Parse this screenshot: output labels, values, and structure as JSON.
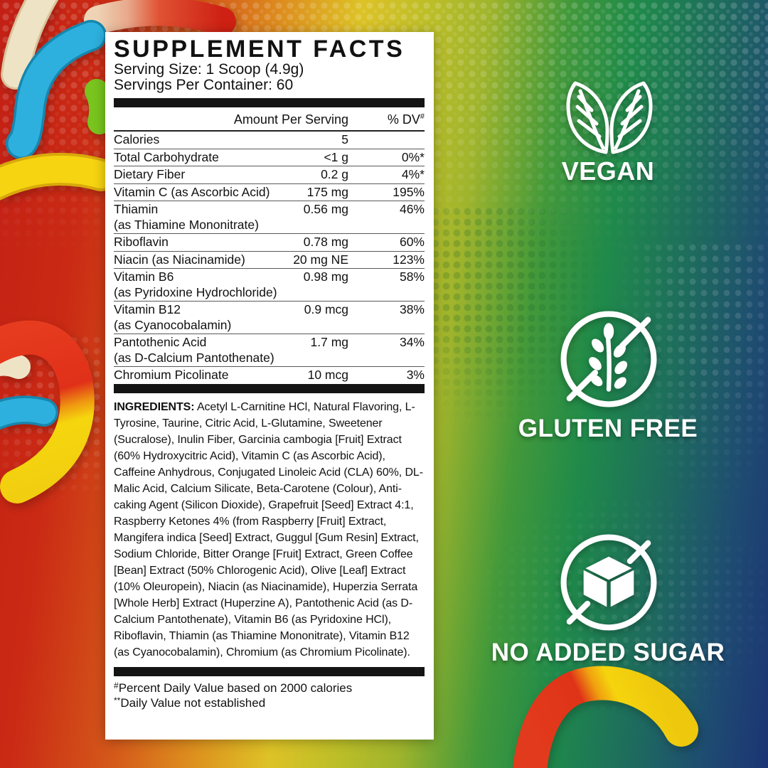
{
  "panel": {
    "title": "SUPPLEMENT FACTS",
    "serving_size": "Serving Size: 1 Scoop (4.9g)",
    "servings_per_container": "Servings Per Container: 60",
    "columns": {
      "amount": "Amount Per Serving",
      "dv": "% DV",
      "dv_sup": "#"
    },
    "rows": [
      {
        "name": "Calories",
        "amount": "5",
        "dv": ""
      },
      {
        "name": "Total Carbohydrate",
        "amount": "<1 g",
        "dv": "0%*"
      },
      {
        "name": "Dietary Fiber",
        "amount": "0.2 g",
        "dv": "4%*"
      },
      {
        "name": "Vitamin C (as Ascorbic Acid)",
        "amount": "175 mg",
        "dv": "195%"
      },
      {
        "name": "Thiamin",
        "sub": "(as Thiamine Mononitrate)",
        "amount": "0.56 mg",
        "dv": "46%"
      },
      {
        "name": "Riboflavin",
        "amount": "0.78 mg",
        "dv": "60%"
      },
      {
        "name": "Niacin (as Niacinamide)",
        "amount": "20 mg NE",
        "dv": "123%"
      },
      {
        "name": "Vitamin B6",
        "sub": "(as Pyridoxine Hydrochloride)",
        "amount": "0.98 mg",
        "dv": "58%"
      },
      {
        "name": "Vitamin B12",
        "sub": "(as Cyanocobalamin)",
        "amount": "0.9 mcg",
        "dv": "38%"
      },
      {
        "name": "Pantothenic Acid",
        "sub": "(as D-Calcium Pantothenate)",
        "amount": "1.7 mg",
        "dv": "34%"
      },
      {
        "name": "Chromium Picolinate",
        "amount": "10 mcg",
        "dv": "3%"
      }
    ],
    "ingredients_label": "INGREDIENTS:",
    "ingredients": " Acetyl L-Carnitine HCl, Natural Flavoring, L-Tyrosine, Taurine, Citric Acid, L-Glutamine, Sweetener (Sucralose), Inulin Fiber, Garcinia cambogia [Fruit] Extract (60% Hydroxycitric Acid), Vitamin C (as Ascorbic Acid), Caffeine Anhydrous, Conjugated Linoleic Acid (CLA) 60%, DL-Malic Acid, Calcium Silicate, Beta-Carotene (Colour), Anti-caking Agent (Silicon Dioxide), Grapefruit [Seed] Extract 4:1, Raspberry Ketones 4% (from Raspberry [Fruit] Extract, Mangifera indica [Seed] Extract, Guggul [Gum Resin] Extract, Sodium Chloride, Bitter Orange [Fruit] Extract, Green Coffee [Bean] Extract (50% Chlorogenic Acid), Olive [Leaf] Extract (10% Oleuropein), Niacin (as Niacinamide), Huperzia Serrata [Whole Herb] Extract (Huperzine A), Pantothenic Acid (as D-Calcium Pantothenate), Vitamin B6 (as Pyridoxine HCl), Riboflavin, Thiamin (as Thiamine Mononitrate), Vitamin B12 (as Cyanocobalamin), Chromium (as Chromium Picolinate).",
    "footnotes": [
      {
        "sup": "#",
        "text": "Percent Daily Value based on 2000 calories"
      },
      {
        "sup": "**",
        "text": "Daily Value not established"
      }
    ]
  },
  "badges": [
    {
      "label": "VEGAN",
      "icon": "vegan-leaves-icon"
    },
    {
      "label": "GLUTEN FREE",
      "icon": "gluten-free-icon"
    },
    {
      "label": "NO ADDED SUGAR",
      "icon": "no-added-sugar-icon"
    }
  ],
  "colors": {
    "panel_bg": "#ffffff",
    "panel_text": "#111111",
    "badge_white": "#ffffff",
    "bg_red": "#c32015",
    "bg_orange": "#d4591a",
    "bg_yellow": "#ddc226",
    "bg_green": "#1f8a4a",
    "bg_navy": "#1c3474"
  }
}
